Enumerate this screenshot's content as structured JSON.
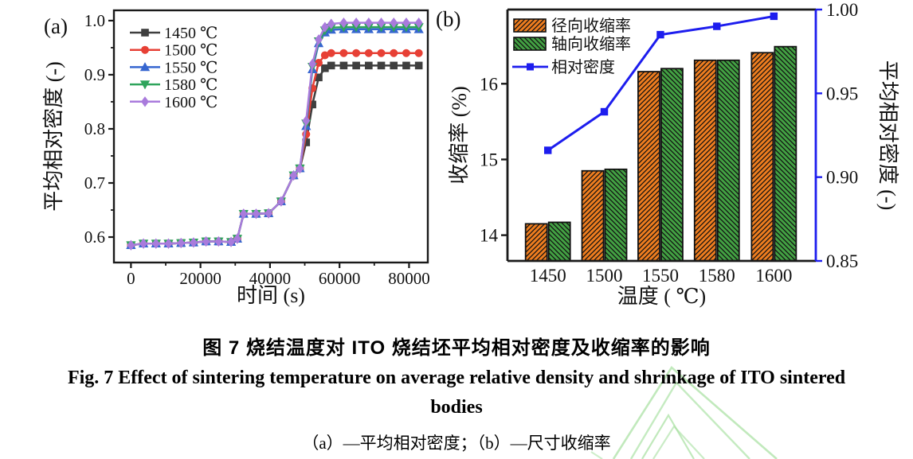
{
  "caption": {
    "title_zh": "图 7 烧结温度对 ITO 烧结坯平均相对密度及收缩率的影响",
    "title_en_line1": "Fig. 7 Effect of sintering temperature on average relative density and shrinkage of ITO sintered",
    "title_en_line2": "bodies",
    "subcaption": "（a）—平均相对密度；（b）—尺寸收缩率"
  },
  "colors": {
    "axis_black": "#1a1a1a",
    "secondary_axis_blue": "#1d1dee",
    "watermark_green": "#a6e0a0"
  },
  "chart_data": [
    {
      "id": "a",
      "type": "line",
      "panel_label": "(a)",
      "xlabel": "时间 (s)",
      "ylabel": "平均相对密度 (-)",
      "xlim": [
        -4900,
        85400
      ],
      "ylim": [
        0.553,
        1.019
      ],
      "xticks": [
        0,
        20000,
        40000,
        60000,
        80000
      ],
      "xticks_minor": [
        10000,
        30000,
        50000,
        70000
      ],
      "yticks": [
        0.6,
        0.7,
        0.8,
        0.9,
        1.0
      ],
      "yticks_minor": [
        0.65,
        0.75,
        0.85,
        0.95
      ],
      "grid": false,
      "legend_position": "top-left",
      "x": [
        0,
        3600,
        7200,
        10800,
        14400,
        18000,
        21600,
        25200,
        28800,
        30600,
        32400,
        36000,
        39600,
        43200,
        46800,
        48600,
        50400,
        52200,
        54000,
        55800,
        57600,
        61200,
        64800,
        68400,
        72000,
        75600,
        79200,
        82800
      ],
      "series": [
        {
          "name": "1450 ℃",
          "color": "#3f3f3f",
          "marker": "square",
          "values": [
            0.585,
            0.588,
            0.588,
            0.588,
            0.589,
            0.59,
            0.592,
            0.592,
            0.591,
            0.597,
            0.643,
            0.643,
            0.644,
            0.666,
            0.714,
            0.727,
            0.775,
            0.845,
            0.895,
            0.912,
            0.917,
            0.917,
            0.917,
            0.917,
            0.917,
            0.917,
            0.917,
            0.917
          ]
        },
        {
          "name": "1500 ℃",
          "color": "#e74035",
          "marker": "circle",
          "values": [
            0.585,
            0.588,
            0.588,
            0.588,
            0.589,
            0.59,
            0.592,
            0.592,
            0.591,
            0.597,
            0.643,
            0.643,
            0.644,
            0.666,
            0.714,
            0.727,
            0.79,
            0.875,
            0.922,
            0.936,
            0.94,
            0.94,
            0.94,
            0.94,
            0.94,
            0.94,
            0.94,
            0.94
          ]
        },
        {
          "name": "1550 ℃",
          "color": "#3666d0",
          "marker": "triangle-up",
          "values": [
            0.585,
            0.588,
            0.588,
            0.588,
            0.589,
            0.59,
            0.592,
            0.592,
            0.591,
            0.597,
            0.643,
            0.643,
            0.644,
            0.666,
            0.714,
            0.727,
            0.805,
            0.91,
            0.958,
            0.978,
            0.983,
            0.984,
            0.984,
            0.984,
            0.984,
            0.984,
            0.984,
            0.984
          ]
        },
        {
          "name": "1580 ℃",
          "color": "#2fa45c",
          "marker": "triangle-down",
          "values": [
            0.585,
            0.588,
            0.588,
            0.588,
            0.589,
            0.59,
            0.592,
            0.592,
            0.591,
            0.597,
            0.643,
            0.643,
            0.644,
            0.666,
            0.714,
            0.727,
            0.81,
            0.915,
            0.962,
            0.982,
            0.987,
            0.988,
            0.988,
            0.988,
            0.988,
            0.988,
            0.988,
            0.988
          ]
        },
        {
          "name": "1600 ℃",
          "color": "#a97bdc",
          "marker": "diamond",
          "values": [
            0.585,
            0.588,
            0.588,
            0.588,
            0.589,
            0.59,
            0.592,
            0.592,
            0.591,
            0.597,
            0.643,
            0.643,
            0.644,
            0.666,
            0.714,
            0.727,
            0.815,
            0.92,
            0.965,
            0.988,
            0.994,
            0.996,
            0.996,
            0.996,
            0.996,
            0.996,
            0.996,
            0.996
          ]
        }
      ]
    },
    {
      "id": "b",
      "type": "bar+line",
      "panel_label": "(b)",
      "xlabel": "温度 ( ℃)",
      "ylabel_left": "收缩率 (%)",
      "ylabel_right": "平均相对密度 (-)",
      "categories": [
        "1450",
        "1500",
        "1550",
        "1580",
        "1600"
      ],
      "ylim_left": [
        13.66,
        16.98
      ],
      "yticks_left": [
        14,
        15,
        16
      ],
      "ylim_right": [
        0.85,
        1.0
      ],
      "yticks_right": [
        "0.85",
        "0.90",
        "0.95",
        "1.00"
      ],
      "grid": false,
      "legend_position": "top-left",
      "bar_series": [
        {
          "name": "径向收缩率",
          "color": "#ee7d1f",
          "hatch": "/",
          "values": [
            14.15,
            14.85,
            16.16,
            16.31,
            16.41
          ]
        },
        {
          "name": "轴向收缩率",
          "color": "#43a143",
          "hatch": "\\",
          "values": [
            14.17,
            14.87,
            16.2,
            16.31,
            16.49
          ]
        }
      ],
      "line_series": {
        "name": "相对密度",
        "color": "#1d1dee",
        "marker": "square",
        "axis": "right",
        "values": [
          0.916,
          0.939,
          0.985,
          0.99,
          0.996
        ]
      }
    }
  ]
}
